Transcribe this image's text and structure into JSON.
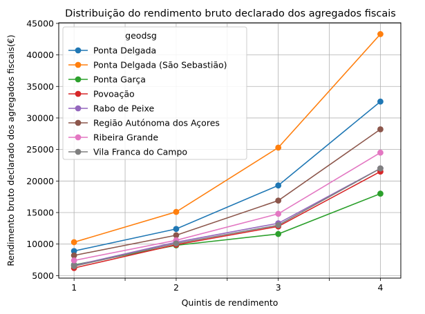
{
  "chart_data": {
    "type": "line",
    "title": "Distribuição do rendimento bruto declarado dos agregados fiscais",
    "xlabel": "Quintis de rendimento",
    "ylabel": "Rendimento bruto declarado dos agregados fiscais(€)",
    "x": [
      1,
      2,
      3,
      4
    ],
    "x_tick_labels": [
      "1",
      "2",
      "3",
      "4"
    ],
    "y_ticks": [
      5000,
      10000,
      15000,
      20000,
      25000,
      30000,
      35000,
      40000,
      45000
    ],
    "y_tick_labels": [
      "5000",
      "10000",
      "15000",
      "20000",
      "25000",
      "30000",
      "35000",
      "40000",
      "45000"
    ],
    "xlim": [
      0.85,
      4.2
    ],
    "ylim": [
      4600,
      45100
    ],
    "grid": true,
    "legend": {
      "title": "geodsg",
      "placement": "top-left"
    },
    "series": [
      {
        "name": "Ponta Delgada",
        "color": "#1f77b4",
        "values": [
          8900,
          12400,
          19300,
          32600
        ]
      },
      {
        "name": "Ponta Delgada (São Sebastião)",
        "color": "#ff7f0e",
        "values": [
          10300,
          15100,
          25300,
          43300
        ]
      },
      {
        "name": "Ponta Garça",
        "color": "#2ca02c",
        "values": [
          6700,
          9800,
          11600,
          18000
        ]
      },
      {
        "name": "Povoação",
        "color": "#d62728",
        "values": [
          6200,
          9900,
          12800,
          21500
        ]
      },
      {
        "name": "Rabo de Peixe",
        "color": "#9467bd",
        "values": [
          6600,
          10300,
          13300,
          22000
        ]
      },
      {
        "name": "Região Autónoma dos Açores",
        "color": "#8c564b",
        "values": [
          8200,
          11400,
          16900,
          28200
        ]
      },
      {
        "name": "Ribeira Grande",
        "color": "#e377c2",
        "values": [
          7400,
          10600,
          14800,
          24500
        ]
      },
      {
        "name": "Vila Franca do Campo",
        "color": "#7f7f7f",
        "values": [
          6500,
          10100,
          13000,
          22000
        ]
      }
    ]
  }
}
